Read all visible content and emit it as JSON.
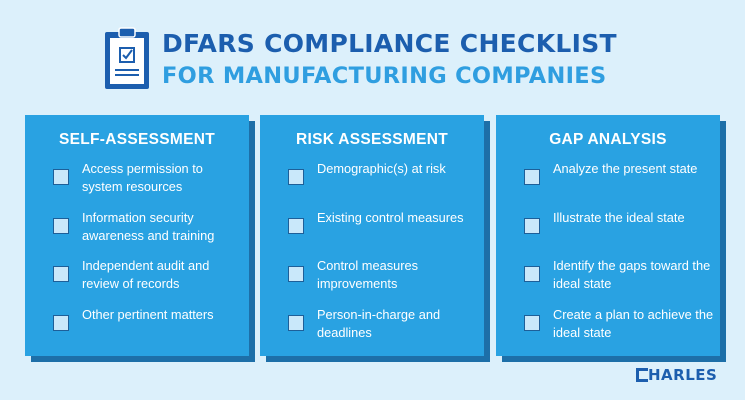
{
  "header": {
    "title_line1": "DFARS COMPLIANCE CHECKLIST",
    "title_line2": "FOR MANUFACTURING COMPANIES",
    "icon": "clipboard-check-icon"
  },
  "columns": [
    {
      "title": "SELF-ASSESSMENT",
      "items": [
        "Access permission to system resources",
        "Information security awareness and training",
        "Independent audit and review of records",
        "Other pertinent matters"
      ]
    },
    {
      "title": "RISK ASSESSMENT",
      "items": [
        "Demographic(s) at risk",
        "Existing control measures",
        "Control measures improvements",
        "Person-in-charge and deadlines"
      ]
    },
    {
      "title": "GAP ANALYSIS",
      "items": [
        "Analyze the present state",
        "Illustrate the ideal state",
        "Identify the gaps toward the ideal state",
        "Create a plan to achieve the ideal state"
      ]
    }
  ],
  "brand": {
    "mark": "C",
    "rest": "HARLES"
  },
  "colors": {
    "background": "#dcf0fb",
    "panel": "#29a2e2",
    "panel_shadow": "#1d6fa8",
    "title_dark": "#1c5eae",
    "title_light": "#2f9ee0",
    "checkbox_fill": "#c9e8fa"
  }
}
